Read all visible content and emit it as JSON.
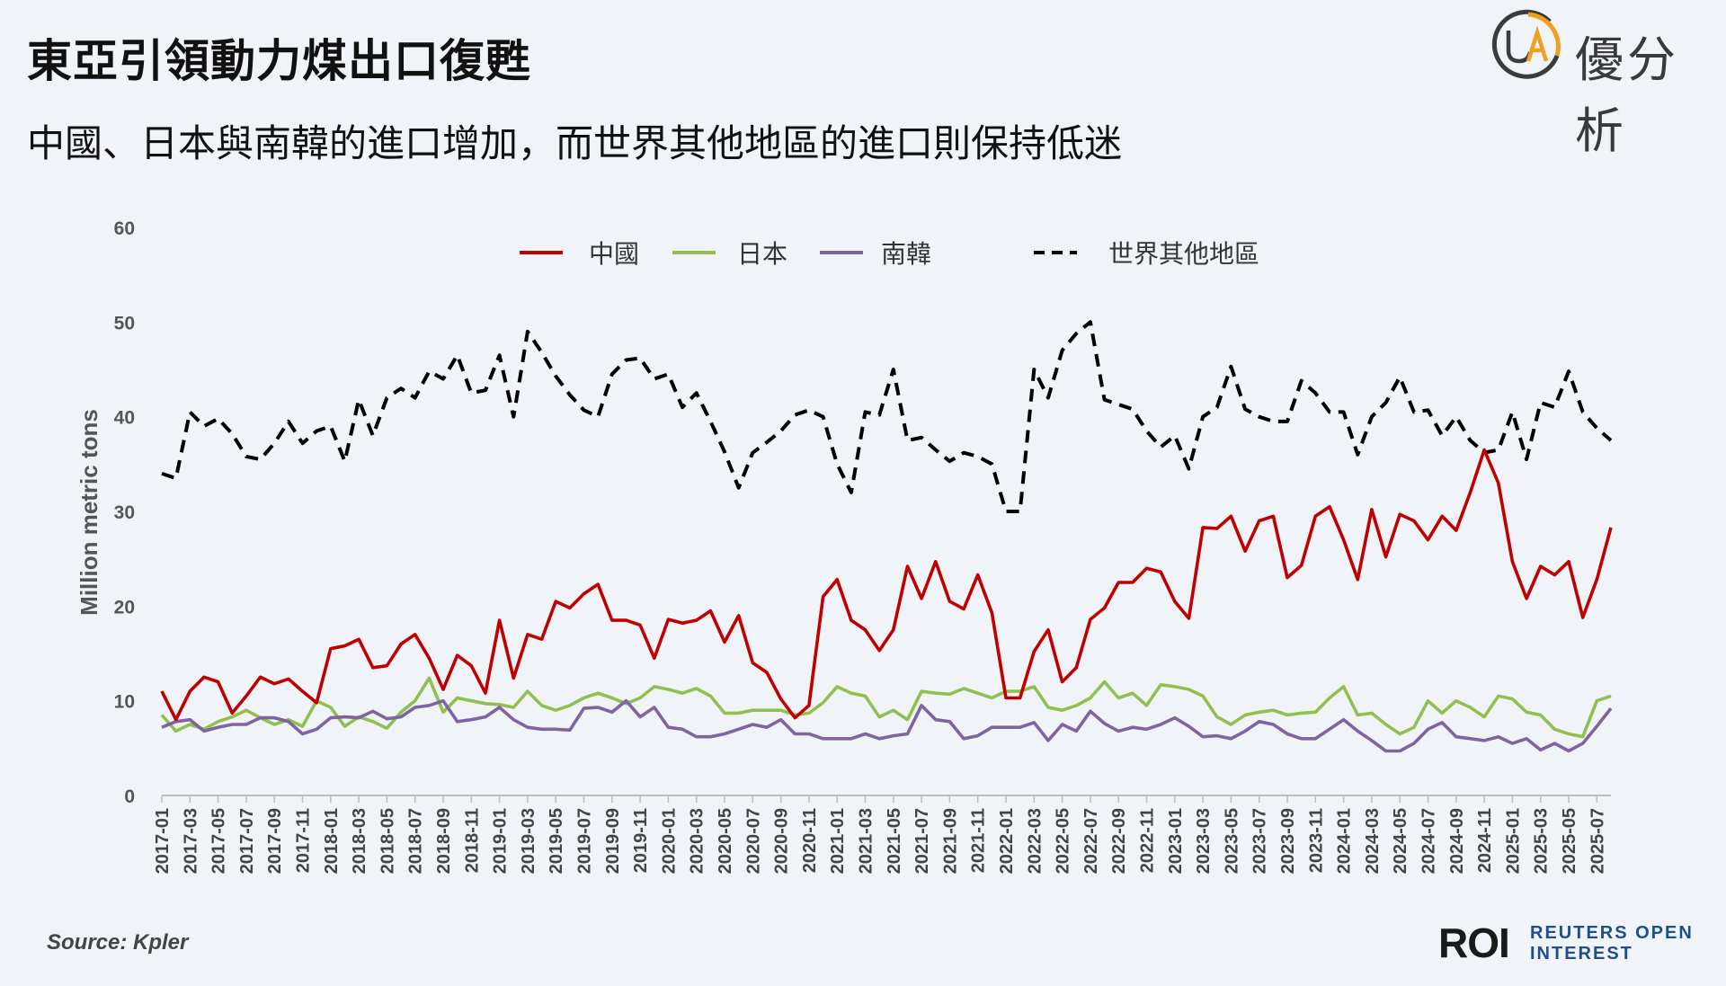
{
  "header": {
    "title": "東亞引領動力煤出口復甦",
    "subtitle": "中國、日本與南韓的進口增加，而世界其他地區的進口則保持低迷"
  },
  "brand": {
    "name": "優分析",
    "logo_letters": "UA"
  },
  "footer": {
    "source": "Source: Kpler",
    "roi_mark": "ROI",
    "roi_line1": "REUTERS OPEN",
    "roi_line2": "INTEREST"
  },
  "colors": {
    "china": "#c00000",
    "japan": "#92c050",
    "korea": "#8064a2",
    "rest_of_world": "#000000",
    "background": "#f0f4f8",
    "logo_ring": "#f0a020"
  },
  "chart_data": {
    "type": "line",
    "ylabel": "Million metric tons",
    "xlabel": "",
    "ylim": [
      0,
      60
    ],
    "yticks": [
      0,
      10,
      20,
      30,
      40,
      50,
      60
    ],
    "grid": false,
    "legend_position": "top",
    "x_start": "2017-01",
    "x_tick_labels": [
      "2017-01",
      "2017-03",
      "2017-05",
      "2017-07",
      "2017-09",
      "2017-11",
      "2018-01",
      "2018-03",
      "2018-05",
      "2018-07",
      "2018-09",
      "2018-11",
      "2019-01",
      "2019-03",
      "2019-05",
      "2019-07",
      "2019-09",
      "2019-11",
      "2020-01",
      "2020-03",
      "2020-05",
      "2020-07",
      "2020-09",
      "2020-11",
      "2021-01",
      "2021-03",
      "2021-05",
      "2021-07",
      "2021-09",
      "2021-11",
      "2022-01",
      "2022-03",
      "2022-05",
      "2022-07",
      "2022-09",
      "2022-11",
      "2023-01",
      "2023-03",
      "2023-05",
      "2023-07",
      "2023-09",
      "2023-11",
      "2024-01",
      "2024-03",
      "2024-05",
      "2024-07",
      "2024-09",
      "2024-11",
      "2025-01",
      "2025-03",
      "2025-05",
      "2025-07"
    ],
    "series": [
      {
        "name": "中國",
        "color": "#c00000",
        "dash": "solid",
        "values": [
          11,
          8,
          11,
          12.5,
          12,
          8.7,
          10.5,
          12.5,
          11.8,
          12.3,
          11,
          9.8,
          15.5,
          15.8,
          16.5,
          13.5,
          13.7,
          16,
          17,
          14.5,
          11.2,
          14.8,
          13.7,
          10.8,
          18.5,
          12.4,
          17,
          16.5,
          20.5,
          19.8,
          21.3,
          22.3,
          18.5,
          18.5,
          18,
          14.5,
          18.6,
          18.2,
          18.5,
          19.5,
          16.2,
          19,
          14,
          13,
          10.2,
          8.2,
          9.5,
          21,
          22.8,
          18.5,
          17.5,
          15.3,
          17.5,
          24.2,
          20.8,
          24.7,
          20.5,
          19.7,
          23.3,
          19.3,
          10.3,
          10.3,
          15.2,
          17.5,
          12,
          13.5,
          18.6,
          19.8,
          22.5,
          22.5,
          24,
          23.6,
          20.5,
          18.7,
          28.3,
          28.2,
          29.5,
          25.8,
          29,
          29.5,
          23,
          24.3,
          29.5,
          30.5,
          27,
          22.8,
          30.2,
          25.2,
          29.7,
          29,
          27,
          29.5,
          28,
          32,
          36.5,
          33,
          24.7,
          20.8,
          24.2,
          23.3,
          24.7,
          18.8,
          22.8,
          28.3
        ]
      },
      {
        "name": "日本",
        "color": "#92c050",
        "dash": "solid",
        "values": [
          8.5,
          6.8,
          7.5,
          7,
          7.8,
          8.3,
          9,
          8.2,
          7.5,
          8,
          7.3,
          10,
          9.3,
          7.3,
          8.3,
          7.8,
          7.1,
          8.8,
          10,
          12.4,
          8.8,
          10.3,
          10,
          9.7,
          9.6,
          9.3,
          11,
          9.5,
          9,
          9.5,
          10.3,
          10.8,
          10.3,
          9.7,
          10.3,
          11.5,
          11.2,
          10.8,
          11.3,
          10.5,
          8.7,
          8.7,
          9,
          9,
          9,
          8.5,
          8.7,
          9.8,
          11.5,
          10.8,
          10.5,
          8.3,
          9,
          8,
          11,
          10.8,
          10.7,
          11.3,
          10.8,
          10.3,
          11,
          11,
          11.5,
          9.3,
          9,
          9.5,
          10.3,
          12,
          10.3,
          10.8,
          9.5,
          11.7,
          11.5,
          11.2,
          10.5,
          8.3,
          7.5,
          8.5,
          8.8,
          9,
          8.5,
          8.7,
          8.8,
          10.3,
          11.5,
          8.5,
          8.7,
          7.5,
          6.5,
          7.2,
          10,
          8.7,
          10,
          9.3,
          8.3,
          10.5,
          10.2,
          8.8,
          8.5,
          7,
          6.5,
          6.2,
          10,
          10.5
        ]
      },
      {
        "name": "南韓",
        "color": "#8064a2",
        "dash": "solid",
        "values": [
          7.2,
          7.8,
          8,
          6.8,
          7.2,
          7.5,
          7.5,
          8.2,
          8.2,
          7.8,
          6.5,
          7,
          8.2,
          8.3,
          8.2,
          8.9,
          8.1,
          8.3,
          9.3,
          9.5,
          10,
          7.8,
          8,
          8.3,
          9.3,
          8,
          7.2,
          7,
          7,
          6.9,
          9.2,
          9.3,
          8.8,
          10,
          8.3,
          9.3,
          7.2,
          7,
          6.2,
          6.2,
          6.5,
          7,
          7.5,
          7.2,
          8,
          6.5,
          6.5,
          6,
          6,
          6,
          6.5,
          6,
          6.3,
          6.5,
          9.5,
          8,
          7.8,
          6,
          6.3,
          7.2,
          7.2,
          7.2,
          7.7,
          5.8,
          7.5,
          6.8,
          8.9,
          7.6,
          6.8,
          7.2,
          7,
          7.5,
          8.2,
          7.3,
          6.2,
          6.3,
          6,
          6.8,
          7.8,
          7.5,
          6.5,
          6,
          6,
          7,
          8,
          6.8,
          5.8,
          4.7,
          4.7,
          5.5,
          7,
          7.7,
          6.2,
          6,
          5.8,
          6.2,
          5.5,
          6,
          4.8,
          5.5,
          4.7,
          5.5,
          7.3,
          9.2
        ]
      },
      {
        "name": "世界其他地區",
        "color": "#000000",
        "dash": "dashed",
        "values": [
          34,
          33.5,
          40.5,
          39,
          39.8,
          38.2,
          35.8,
          35.5,
          37.2,
          39.5,
          37.2,
          38.5,
          39,
          35.3,
          41.8,
          38,
          42,
          43,
          42,
          44.8,
          44,
          46.5,
          42.5,
          42.8,
          46.5,
          40,
          49,
          46.8,
          44.3,
          42.3,
          40.7,
          40,
          44.5,
          46,
          46.2,
          44,
          44.5,
          41,
          42.5,
          39.5,
          36.3,
          32.5,
          36.2,
          37.3,
          38.5,
          40.2,
          40.7,
          40,
          35,
          32,
          40.5,
          40.2,
          45,
          37.5,
          37.8,
          36.5,
          35.3,
          36.2,
          35.8,
          35,
          30,
          30,
          45,
          42,
          47,
          48.8,
          50,
          41.8,
          41.3,
          40.8,
          38.5,
          36.8,
          38,
          34.5,
          40,
          41,
          45.3,
          40.8,
          40,
          39.5,
          39.5,
          43.8,
          42.5,
          40.5,
          40.5,
          36,
          40,
          41.5,
          44.2,
          40.5,
          40.7,
          38,
          40,
          37.5,
          36.2,
          36.5,
          40.5,
          35.5,
          41.5,
          41,
          44.8,
          40.5,
          38.8,
          37.5
        ]
      }
    ]
  }
}
